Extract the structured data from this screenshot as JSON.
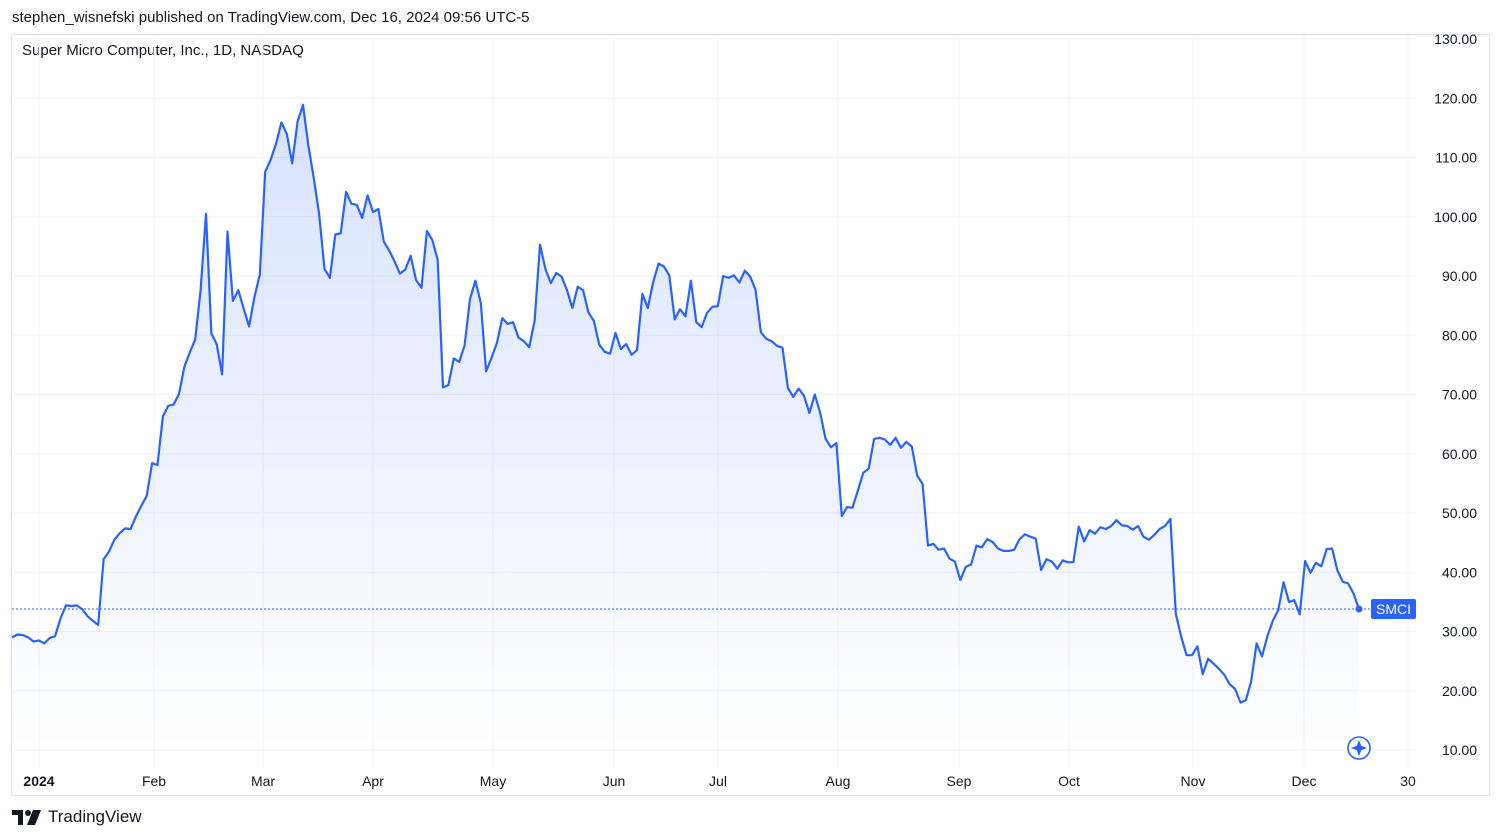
{
  "header": {
    "published": "stephen_wisnefski published on TradingView.com, Dec 16, 2024 09:56 UTC-5"
  },
  "symbol_title": "Super Micro Computer, Inc., 1D, NASDAQ",
  "footer": {
    "brand": "TradingView"
  },
  "icons": {
    "logo": "tradingview-logo-icon",
    "compass": "compass-icon"
  },
  "colors": {
    "line": "#2962ff",
    "area_top": "#2962ff",
    "price_tag": "#2962ff",
    "grid": "#f0f3fa"
  },
  "chart_data": {
    "type": "area",
    "series": [
      {
        "name": "SMCI",
        "values": [
          29.0,
          29.5,
          29.4,
          29.0,
          28.3,
          28.5,
          28.0,
          28.9,
          29.2,
          32.2,
          34.4,
          34.3,
          34.4,
          33.8,
          32.6,
          31.8,
          31.1,
          42.2,
          43.5,
          45.5,
          46.6,
          47.4,
          47.3,
          49.4,
          51.2,
          52.9,
          58.4,
          58.1,
          66.3,
          68.1,
          68.3,
          70.1,
          74.7,
          77.1,
          79.3,
          87.6,
          100.5,
          80.3,
          78.5,
          73.4,
          97.5,
          85.8,
          87.6,
          84.5,
          81.5,
          86.5,
          90.2,
          107.6,
          109.6,
          112.3,
          115.9,
          114.0,
          109.0,
          116.1,
          118.9,
          112.1,
          106.6,
          100.5,
          91.2,
          89.7,
          97.0,
          97.2,
          104.2,
          102.2,
          102.0,
          99.8,
          103.6,
          100.8,
          101.3,
          95.8,
          94.3,
          92.5,
          90.4,
          91.1,
          93.4,
          89.3,
          88.0,
          97.6,
          96.1,
          92.7,
          71.2,
          71.6,
          76.1,
          75.5,
          78.3,
          86.1,
          89.2,
          85.5,
          73.9,
          76.2,
          78.7,
          82.9,
          81.9,
          82.2,
          79.6,
          79.0,
          78.0,
          82.4,
          95.3,
          91.2,
          88.8,
          90.5,
          89.9,
          87.6,
          84.6,
          88.2,
          87.6,
          83.8,
          82.4,
          78.4,
          77.2,
          76.9,
          80.4,
          77.7,
          78.5,
          76.7,
          77.5,
          87.0,
          84.6,
          89.0,
          92.1,
          91.6,
          90.1,
          82.7,
          84.4,
          83.2,
          89.2,
          82.2,
          81.4,
          83.8,
          84.8,
          84.9,
          90.0,
          89.7,
          90.1,
          88.9,
          90.9,
          89.9,
          87.7,
          80.5,
          79.4,
          79.0,
          78.2,
          77.9,
          71.1,
          69.6,
          71.0,
          69.8,
          66.9,
          70.0,
          66.9,
          62.5,
          61.1,
          61.8,
          49.5,
          51.0,
          50.9,
          53.8,
          56.8,
          57.5,
          62.5,
          62.7,
          62.4,
          61.5,
          62.7,
          61.0,
          62.0,
          61.2,
          56.3,
          54.9,
          44.5,
          44.8,
          43.8,
          44.0,
          42.3,
          41.8,
          38.7,
          40.9,
          41.3,
          44.5,
          44.2,
          45.6,
          45.1,
          44.0,
          43.6,
          43.6,
          43.8,
          45.6,
          46.4,
          46.0,
          45.7,
          40.4,
          42.2,
          41.8,
          40.6,
          42.0,
          41.7,
          41.7,
          47.7,
          45.2,
          47.1,
          46.5,
          47.6,
          47.3,
          47.8,
          48.8,
          47.9,
          47.8,
          47.2,
          47.8,
          46.0,
          45.5,
          46.3,
          47.3,
          47.8,
          49.0,
          33.0,
          29.1,
          26.0,
          26.0,
          27.5,
          22.8,
          25.4,
          24.6,
          23.7,
          22.7,
          21.1,
          20.3,
          18.0,
          18.4,
          21.6,
          28.0,
          25.8,
          29.2,
          31.8,
          33.6,
          38.3,
          35.0,
          35.3,
          32.9,
          41.9,
          39.9,
          41.6,
          41.0,
          43.9,
          44.0,
          40.3,
          38.4,
          38.1,
          36.4,
          33.8
        ]
      }
    ],
    "x_ticks": [
      "2024",
      "Feb",
      "Mar",
      "Apr",
      "May",
      "Jun",
      "Jul",
      "Aug",
      "Sep",
      "Oct",
      "Nov",
      "Dec",
      "30"
    ],
    "y_ticks": [
      "10.00",
      "20.00",
      "30.00",
      "40.00",
      "50.00",
      "60.00",
      "70.00",
      "80.00",
      "90.00",
      "100.00",
      "110.00",
      "120.00",
      "130.00"
    ],
    "ylim": [
      10,
      130
    ],
    "last_value_label": "SMCI",
    "last_value": 33.8
  }
}
